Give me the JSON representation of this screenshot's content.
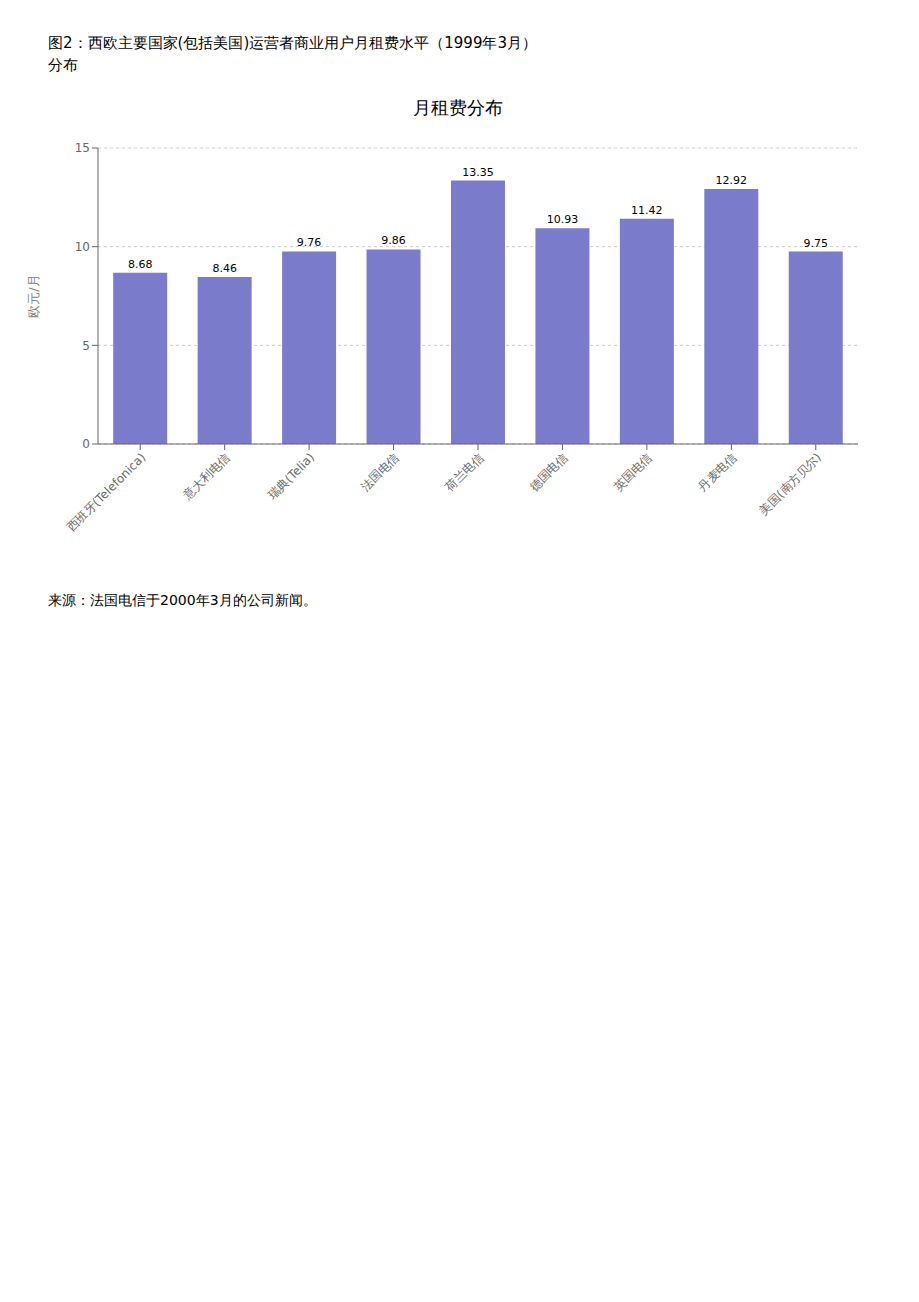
{
  "chart_data": {
    "type": "bar",
    "title": "月租费分布",
    "y_label": "欧元/月",
    "categories": [
      "西班牙(Telefonica)",
      "意大利电信",
      "瑞典(Telia)",
      "法国电信",
      "荷兰电信",
      "德国电信",
      "英国电信",
      "丹麦电信",
      "美国(南方贝尔)"
    ],
    "values": [
      8.68,
      8.46,
      9.76,
      9.86,
      13.35,
      10.93,
      11.42,
      12.92,
      9.75
    ],
    "color": "#7b7bcc",
    "ylim": [
      0,
      15
    ],
    "yticks": [
      0,
      5,
      10,
      15
    ],
    "grid": true,
    "data_labels": true,
    "annotations": [
      "图2：西欧主要国家(包括美国)运营者商业用户月租费水平（1999年3月）",
      "分布",
      "来源：法国电信于2000年3月的公司新闻。"
    ]
  }
}
